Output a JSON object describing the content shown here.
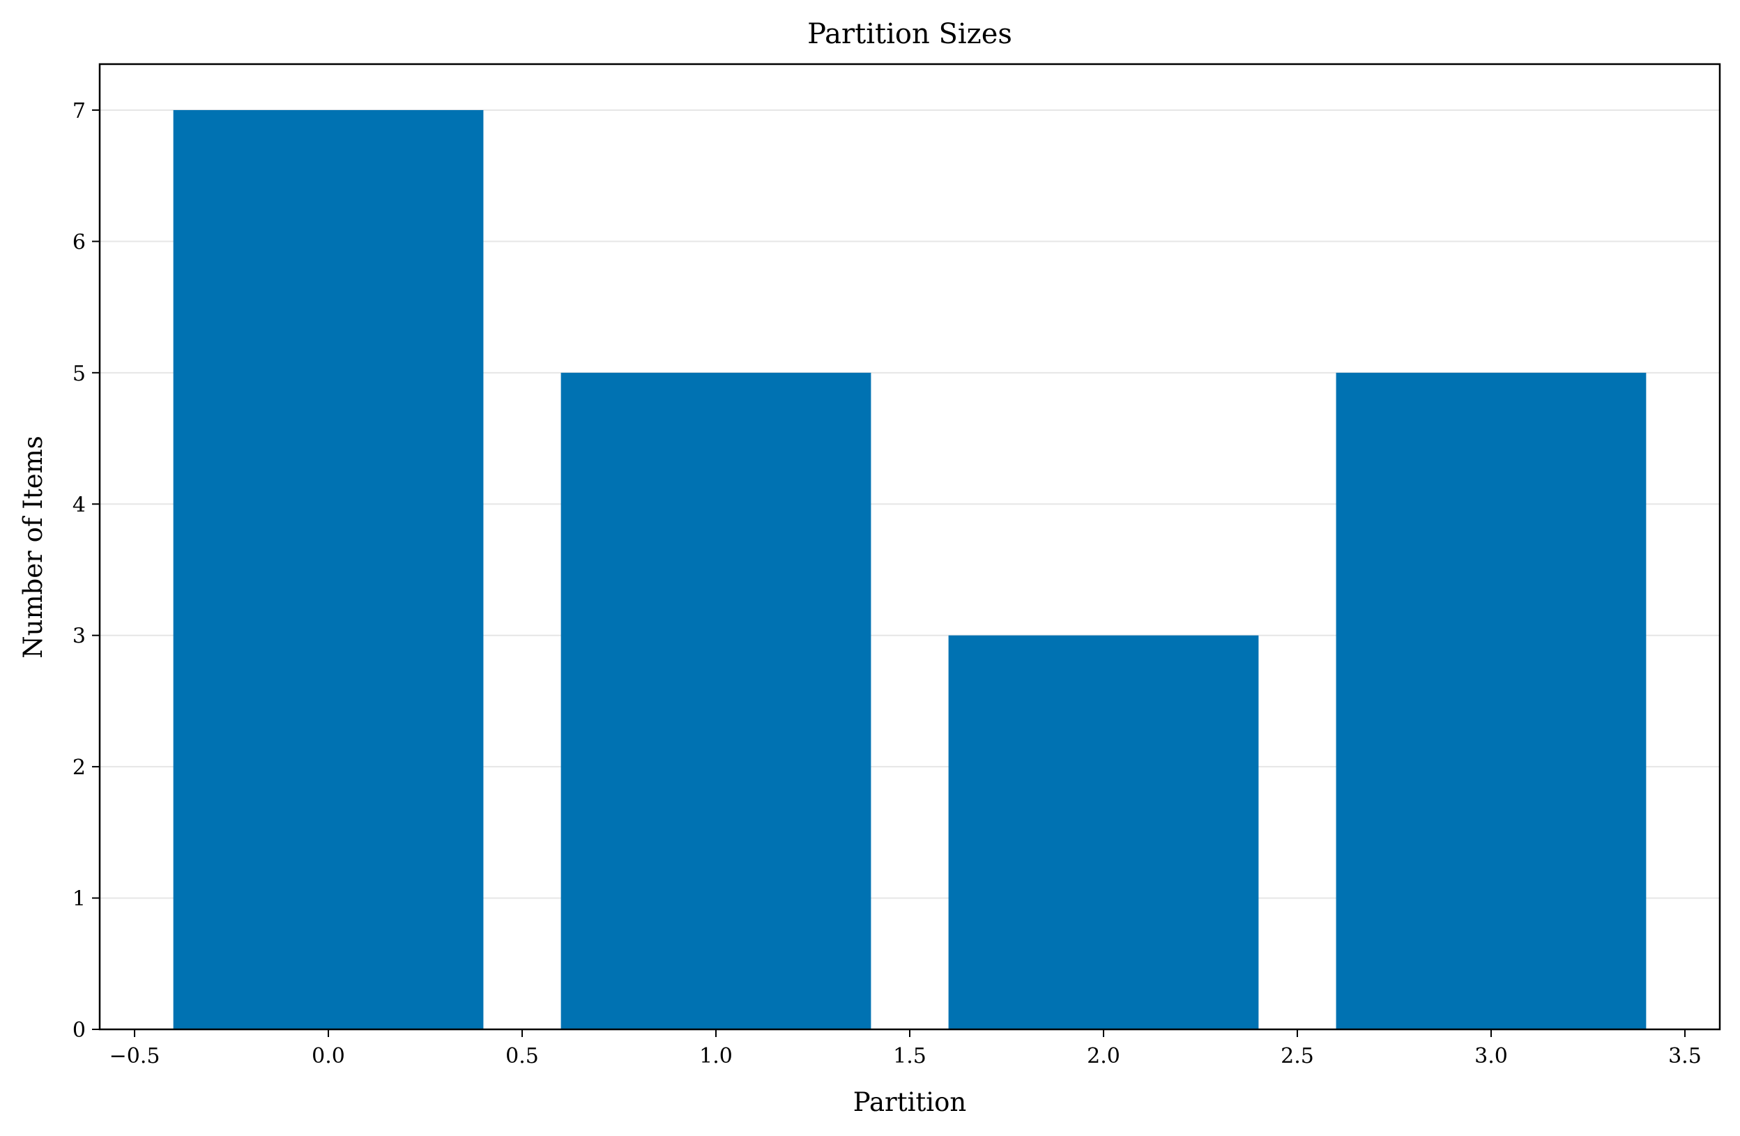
{
  "chart_data": {
    "type": "bar",
    "title": "Partition Sizes",
    "xlabel": "Partition",
    "ylabel": "Number of Items",
    "x": [
      0,
      1,
      2,
      3
    ],
    "values": [
      7,
      5,
      3,
      5
    ],
    "bar_width": 0.8,
    "xlim": [
      -0.59,
      3.59
    ],
    "ylim": [
      0,
      7.35
    ],
    "xticks": [
      -0.5,
      0.0,
      0.5,
      1.0,
      1.5,
      2.0,
      2.5,
      3.0,
      3.5
    ],
    "xtick_labels": [
      "−0.5",
      "0.0",
      "0.5",
      "1.0",
      "1.5",
      "2.0",
      "2.5",
      "3.0",
      "3.5"
    ],
    "yticks": [
      0,
      1,
      2,
      3,
      4,
      5,
      6,
      7
    ],
    "ytick_labels": [
      "0",
      "1",
      "2",
      "3",
      "4",
      "5",
      "6",
      "7"
    ],
    "grid": "y",
    "colors": {
      "bar": "#0072b2",
      "grid": "#e6e6e6",
      "axis": "#000000"
    }
  }
}
